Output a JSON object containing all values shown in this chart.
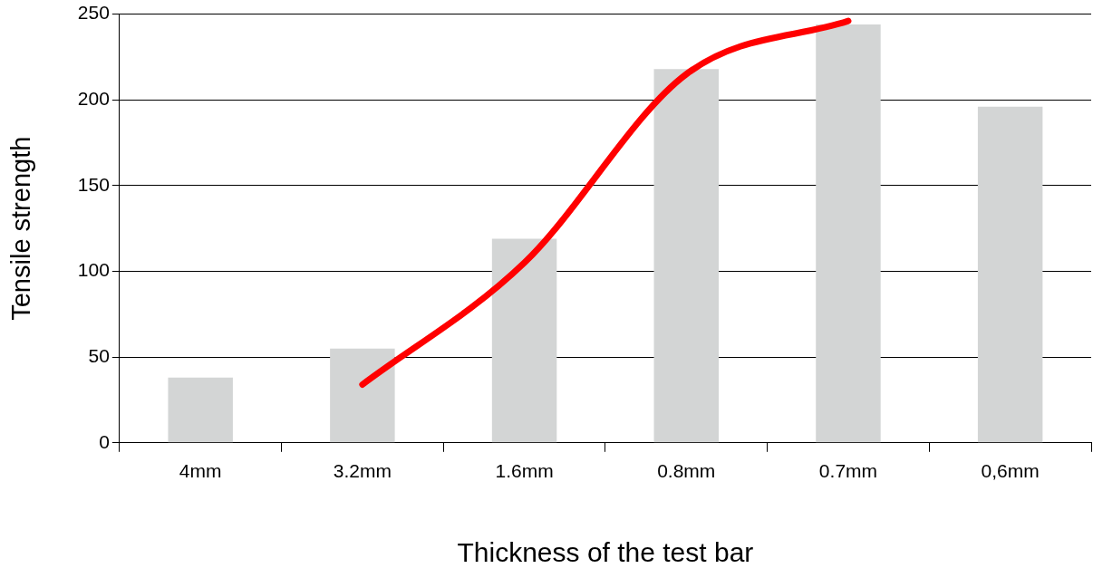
{
  "chart_data": {
    "type": "bar",
    "xlabel": "Thickness of the test bar",
    "ylabel": "Tensile strength",
    "categories": [
      "4mm",
      "3.2mm",
      "1.6mm",
      "0.8mm",
      "0.7mm",
      "0,6mm"
    ],
    "series": [
      {
        "color": "#d3d5d5",
        "values": [
          38,
          55,
          119,
          218,
          244,
          196
        ]
      },
      {
        "type": "line",
        "color": "#ff0000",
        "values": [
          null,
          34,
          105,
          215,
          246,
          null
        ]
      }
    ],
    "ylim": [
      0,
      250
    ],
    "yticks": [
      0,
      50,
      100,
      150,
      200,
      250
    ],
    "grid": "y",
    "marker": "none",
    "line_style": "solid"
  }
}
